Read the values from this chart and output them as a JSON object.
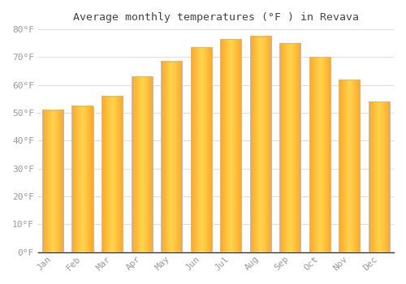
{
  "title": "Average monthly temperatures (°F ) in Revava",
  "months": [
    "Jan",
    "Feb",
    "Mar",
    "Apr",
    "May",
    "Jun",
    "Jul",
    "Aug",
    "Sep",
    "Oct",
    "Nov",
    "Dec"
  ],
  "values": [
    51,
    52.5,
    56,
    63,
    68.5,
    73.5,
    76.5,
    77.5,
    75,
    70,
    62,
    54
  ],
  "bar_color_center": "#FFD54F",
  "bar_color_edge": "#FFA726",
  "bar_edge_color": "#BBBBBB",
  "background_color": "#FFFFFF",
  "plot_bg_color": "#FFFFFF",
  "grid_color": "#DDDDDD",
  "tick_label_color": "#999999",
  "title_color": "#444444",
  "ylim": [
    0,
    80
  ],
  "yticks": [
    0,
    10,
    20,
    30,
    40,
    50,
    60,
    70,
    80
  ],
  "ytick_labels": [
    "0°F",
    "10°F",
    "20°F",
    "30°F",
    "40°F",
    "50°F",
    "60°F",
    "70°F",
    "80°F"
  ]
}
